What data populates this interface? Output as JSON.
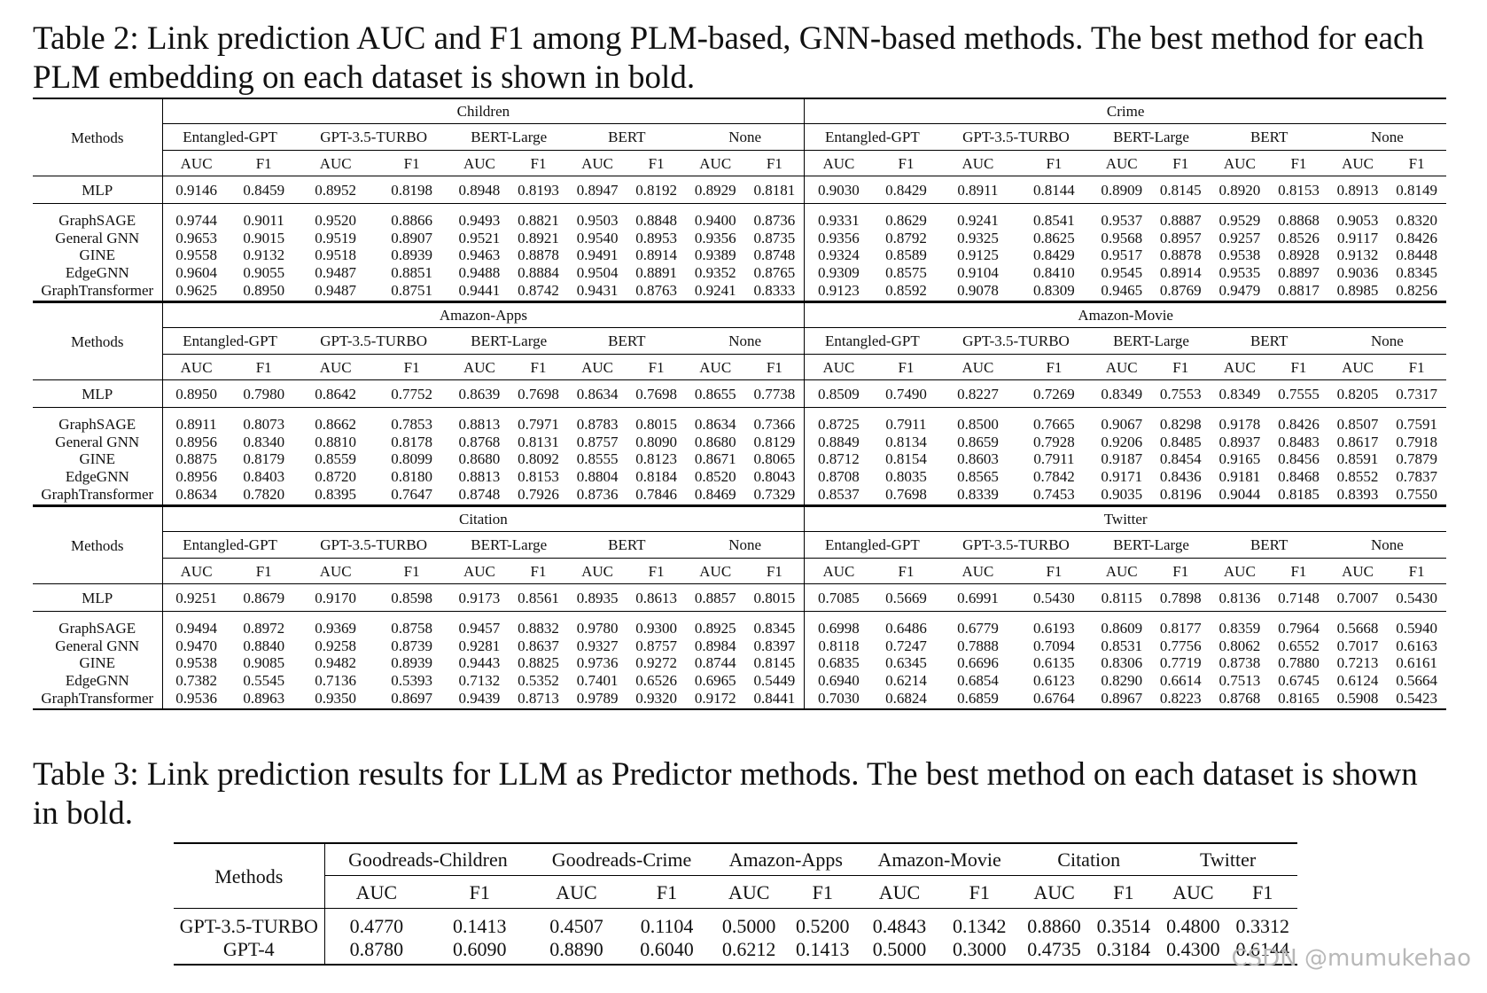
{
  "captions": {
    "table2": "Table 2: Link prediction AUC and F1 among PLM-based, GNN-based methods. The best method for each PLM embedding on each dataset is shown in bold.",
    "table3": "Table 3: Link prediction results for LLM as Predictor methods. The best method on each dataset is shown in bold."
  },
  "table2": {
    "methods_label": "Methods",
    "plm_labels": [
      "Entangled-GPT",
      "GPT-3.5-TURBO",
      "BERT-Large",
      "BERT",
      "None"
    ],
    "metric_labels": [
      "AUC",
      "F1"
    ],
    "blocks": [
      {
        "datasets": [
          "Children",
          "Crime"
        ],
        "rows": [
          {
            "method": "MLP",
            "values": [
              "0.9146",
              "0.8459",
              "0.8952",
              "0.8198",
              "0.8948",
              "0.8193",
              "0.8947",
              "0.8192",
              "0.8929",
              "0.8181",
              "0.9030",
              "0.8429",
              "0.8911",
              "0.8144",
              "0.8909",
              "0.8145",
              "0.8920",
              "0.8153",
              "0.8913",
              "0.8149"
            ],
            "bold": []
          },
          {
            "method": "GraphSAGE",
            "values": [
              "0.9744",
              "0.9011",
              "0.9520",
              "0.8866",
              "0.9493",
              "0.8821",
              "0.9503",
              "0.8848",
              "0.9400",
              "0.8736",
              "0.9331",
              "0.8629",
              "0.9241",
              "0.8541",
              "0.9537",
              "0.8887",
              "0.9529",
              "0.8868",
              "0.9053",
              "0.8320"
            ],
            "bold": [
              0,
              2
            ]
          },
          {
            "method": "General GNN",
            "values": [
              "0.9653",
              "0.9015",
              "0.9519",
              "0.8907",
              "0.9521",
              "0.8921",
              "0.9540",
              "0.8953",
              "0.9356",
              "0.8735",
              "0.9356",
              "0.8792",
              "0.9325",
              "0.8625",
              "0.9568",
              "0.8957",
              "0.9257",
              "0.8526",
              "0.9117",
              "0.8426"
            ],
            "bold": [
              4,
              5,
              6,
              7,
              10,
              11,
              12,
              13,
              14,
              15
            ]
          },
          {
            "method": "GINE",
            "values": [
              "0.9558",
              "0.9132",
              "0.9518",
              "0.8939",
              "0.9463",
              "0.8878",
              "0.9491",
              "0.8914",
              "0.9389",
              "0.8748",
              "0.9324",
              "0.8589",
              "0.9125",
              "0.8429",
              "0.9517",
              "0.8878",
              "0.9538",
              "0.8928",
              "0.9132",
              "0.8448"
            ],
            "bold": [
              1,
              3,
              8,
              16,
              17,
              18,
              19
            ]
          },
          {
            "method": "EdgeGNN",
            "values": [
              "0.9604",
              "0.9055",
              "0.9487",
              "0.8851",
              "0.9488",
              "0.8884",
              "0.9504",
              "0.8891",
              "0.9352",
              "0.8765",
              "0.9309",
              "0.8575",
              "0.9104",
              "0.8410",
              "0.9545",
              "0.8914",
              "0.9535",
              "0.8897",
              "0.9036",
              "0.8345"
            ],
            "bold": [
              9
            ]
          },
          {
            "method": "GraphTransformer",
            "values": [
              "0.9625",
              "0.8950",
              "0.9487",
              "0.8751",
              "0.9441",
              "0.8742",
              "0.9431",
              "0.8763",
              "0.9241",
              "0.8333",
              "0.9123",
              "0.8592",
              "0.9078",
              "0.8309",
              "0.9465",
              "0.8769",
              "0.9479",
              "0.8817",
              "0.8985",
              "0.8256"
            ],
            "bold": []
          }
        ]
      },
      {
        "datasets": [
          "Amazon-Apps",
          "Amazon-Movie"
        ],
        "rows": [
          {
            "method": "MLP",
            "values": [
              "0.8950",
              "0.7980",
              "0.8642",
              "0.7752",
              "0.8639",
              "0.7698",
              "0.8634",
              "0.7698",
              "0.8655",
              "0.7738",
              "0.8509",
              "0.7490",
              "0.8227",
              "0.7269",
              "0.8349",
              "0.7553",
              "0.8349",
              "0.7555",
              "0.8205",
              "0.7317"
            ],
            "bold": []
          },
          {
            "method": "GraphSAGE",
            "values": [
              "0.8911",
              "0.8073",
              "0.8662",
              "0.7853",
              "0.8813",
              "0.7971",
              "0.8783",
              "0.8015",
              "0.8634",
              "0.7366",
              "0.8725",
              "0.7911",
              "0.8500",
              "0.7665",
              "0.9067",
              "0.8298",
              "0.9178",
              "0.8426",
              "0.8507",
              "0.7591"
            ],
            "bold": [
              4
            ]
          },
          {
            "method": "General GNN",
            "values": [
              "0.8956",
              "0.8340",
              "0.8810",
              "0.8178",
              "0.8768",
              "0.8131",
              "0.8757",
              "0.8090",
              "0.8680",
              "0.8129",
              "0.8849",
              "0.8134",
              "0.8659",
              "0.7928",
              "0.9206",
              "0.8485",
              "0.8937",
              "0.8483",
              "0.8617",
              "0.7918"
            ],
            "bold": [
              0,
              2,
              8,
              9,
              10,
              12,
              13,
              14,
              15,
              17,
              18,
              19
            ]
          },
          {
            "method": "GINE",
            "values": [
              "0.8875",
              "0.8179",
              "0.8559",
              "0.8099",
              "0.8680",
              "0.8092",
              "0.8555",
              "0.8123",
              "0.8671",
              "0.8065",
              "0.8712",
              "0.8154",
              "0.8603",
              "0.7911",
              "0.9187",
              "0.8454",
              "0.9165",
              "0.8456",
              "0.8591",
              "0.7879"
            ],
            "bold": [
              11
            ]
          },
          {
            "method": "EdgeGNN",
            "values": [
              "0.8956",
              "0.8403",
              "0.8720",
              "0.8180",
              "0.8813",
              "0.8153",
              "0.8804",
              "0.8184",
              "0.8520",
              "0.8043",
              "0.8708",
              "0.8035",
              "0.8565",
              "0.7842",
              "0.9171",
              "0.8436",
              "0.9181",
              "0.8468",
              "0.8552",
              "0.7837"
            ],
            "bold": [
              1,
              3,
              4,
              5,
              6,
              7,
              16
            ]
          },
          {
            "method": "GraphTransformer",
            "values": [
              "0.8634",
              "0.7820",
              "0.8395",
              "0.7647",
              "0.8748",
              "0.7926",
              "0.8736",
              "0.7846",
              "0.8469",
              "0.7329",
              "0.8537",
              "0.7698",
              "0.8339",
              "0.7453",
              "0.9035",
              "0.8196",
              "0.9044",
              "0.8185",
              "0.8393",
              "0.7550"
            ],
            "bold": []
          }
        ]
      },
      {
        "datasets": [
          "Citation",
          "Twitter"
        ],
        "rows": [
          {
            "method": "MLP",
            "values": [
              "0.9251",
              "0.8679",
              "0.9170",
              "0.8598",
              "0.9173",
              "0.8561",
              "0.8935",
              "0.8613",
              "0.8857",
              "0.8015",
              "0.7085",
              "0.5669",
              "0.6991",
              "0.5430",
              "0.8115",
              "0.7898",
              "0.8136",
              "0.7148",
              "0.7007",
              "0.5430"
            ],
            "bold": []
          },
          {
            "method": "GraphSAGE",
            "values": [
              "0.9494",
              "0.8972",
              "0.9369",
              "0.8758",
              "0.9457",
              "0.8832",
              "0.9780",
              "0.9300",
              "0.8925",
              "0.8345",
              "0.6998",
              "0.6486",
              "0.6779",
              "0.6193",
              "0.8609",
              "0.8177",
              "0.8359",
              "0.7964",
              "0.5668",
              "0.5940"
            ],
            "bold": [
              4,
              5
            ]
          },
          {
            "method": "General GNN",
            "values": [
              "0.9470",
              "0.8840",
              "0.9258",
              "0.8739",
              "0.9281",
              "0.8637",
              "0.9327",
              "0.8757",
              "0.8984",
              "0.8397",
              "0.8118",
              "0.7247",
              "0.7888",
              "0.7094",
              "0.8531",
              "0.7756",
              "0.8062",
              "0.6552",
              "0.7017",
              "0.6163"
            ],
            "bold": [
              10,
              11,
              19
            ]
          },
          {
            "method": "GINE",
            "values": [
              "0.9538",
              "0.9085",
              "0.9482",
              "0.8939",
              "0.9443",
              "0.8825",
              "0.9736",
              "0.9272",
              "0.8744",
              "0.8145",
              "0.6835",
              "0.6345",
              "0.6696",
              "0.6135",
              "0.8306",
              "0.7719",
              "0.8738",
              "0.7880",
              "0.7213",
              "0.6161"
            ],
            "bold": [
              0,
              1,
              2,
              3,
              18
            ]
          },
          {
            "method": "EdgeGNN",
            "values": [
              "0.7382",
              "0.5545",
              "0.7136",
              "0.5393",
              "0.7132",
              "0.5352",
              "0.7401",
              "0.6526",
              "0.6965",
              "0.5449",
              "0.6940",
              "0.6214",
              "0.6854",
              "0.6123",
              "0.8290",
              "0.6614",
              "0.7513",
              "0.6745",
              "0.6124",
              "0.5664"
            ],
            "bold": []
          },
          {
            "method": "GraphTransformer",
            "values": [
              "0.9536",
              "0.8963",
              "0.9350",
              "0.8697",
              "0.9439",
              "0.8713",
              "0.9789",
              "0.9320",
              "0.9172",
              "0.8441",
              "0.7030",
              "0.6824",
              "0.6859",
              "0.6764",
              "0.8967",
              "0.8223",
              "0.8768",
              "0.8165",
              "0.5908",
              "0.5423"
            ],
            "bold": [
              6,
              7,
              8,
              9,
              14,
              15,
              16,
              17
            ]
          }
        ]
      }
    ]
  },
  "table3": {
    "methods_label": "Methods",
    "datasets": [
      "Goodreads-Children",
      "Goodreads-Crime",
      "Amazon-Apps",
      "Amazon-Movie",
      "Citation",
      "Twitter"
    ],
    "metric_labels": [
      "AUC",
      "F1"
    ],
    "rows": [
      {
        "method": "GPT-3.5-TURBO",
        "values": [
          "0.4770",
          "0.1413",
          "0.4507",
          "0.1104",
          "0.5000",
          "0.5200",
          "0.4843",
          "0.1342",
          "0.8860",
          "0.3514",
          "0.4800",
          "0.3312"
        ],
        "bold": [
          5,
          8,
          9,
          10
        ]
      },
      {
        "method": "GPT-4",
        "values": [
          "0.8780",
          "0.6090",
          "0.8890",
          "0.6040",
          "0.6212",
          "0.1413",
          "0.5000",
          "0.3000",
          "0.4735",
          "0.3184",
          "0.4300",
          "0.6144"
        ],
        "bold": [
          0,
          1,
          2,
          3,
          4,
          6,
          7,
          11
        ]
      }
    ]
  },
  "watermark": "CSDN @mumukehao"
}
